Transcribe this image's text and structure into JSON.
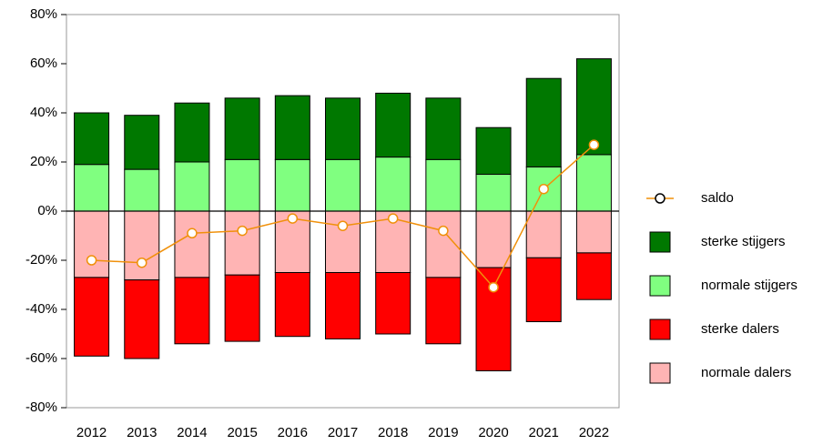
{
  "chart_data": {
    "type": "bar",
    "categories": [
      "2012",
      "2013",
      "2014",
      "2015",
      "2016",
      "2017",
      "2018",
      "2019",
      "2020",
      "2021",
      "2022"
    ],
    "series": [
      {
        "name": "saldo",
        "type": "line",
        "color": "#f0900a",
        "values": [
          -20,
          -21,
          -9,
          -8,
          -3,
          -6,
          -3,
          -8,
          -31,
          9,
          27
        ]
      },
      {
        "name": "sterke stijgers",
        "color": "#007800",
        "values": [
          21,
          22,
          24,
          25,
          26,
          25,
          26,
          25,
          19,
          36,
          39
        ]
      },
      {
        "name": "normale stijgers",
        "color": "#80ff80",
        "values": [
          19,
          17,
          20,
          21,
          21,
          21,
          22,
          21,
          15,
          18,
          23
        ]
      },
      {
        "name": "sterke dalers",
        "color": "#ff0000",
        "values": [
          -32,
          -32,
          -27,
          -27,
          -26,
          -27,
          -25,
          -27,
          -42,
          -26,
          -19
        ]
      },
      {
        "name": "normale dalers",
        "color": "#ffb4b4",
        "values": [
          -27,
          -28,
          -27,
          -26,
          -25,
          -25,
          -25,
          -27,
          -23,
          -19,
          -17
        ]
      }
    ],
    "ylim": [
      -80,
      80
    ],
    "yticks": [
      {
        "value": -80,
        "label": "-80%"
      },
      {
        "value": -60,
        "label": "-60%"
      },
      {
        "value": -40,
        "label": "-40%"
      },
      {
        "value": -20,
        "label": "-20%"
      },
      {
        "value": 0,
        "label": "0%"
      },
      {
        "value": 20,
        "label": "20%"
      },
      {
        "value": 40,
        "label": "40%"
      },
      {
        "value": 60,
        "label": "60%"
      },
      {
        "value": 80,
        "label": "80%"
      }
    ],
    "legend": "right"
  }
}
